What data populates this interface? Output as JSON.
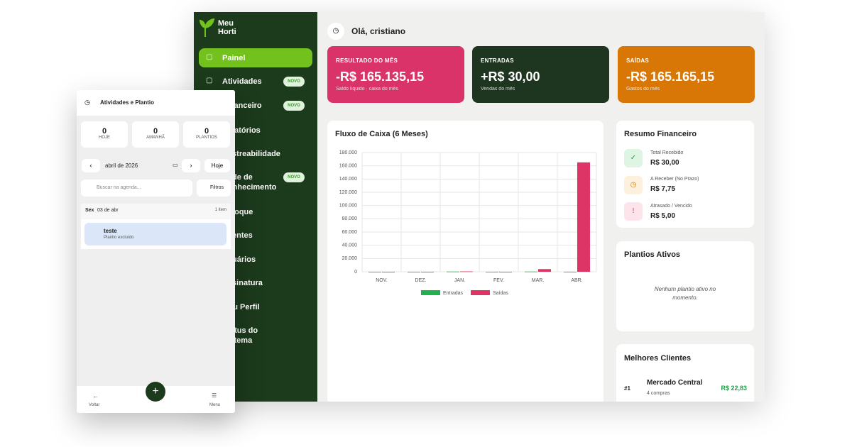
{
  "sidebar": {
    "brand": [
      "Meu",
      "Horti"
    ],
    "nav": [
      {
        "label": "Painel"
      },
      {
        "label": "Atividades",
        "badge": "NOVO"
      },
      {
        "label": "Financeiro",
        "badge": "NOVO"
      },
      {
        "label": "Relatórios"
      },
      {
        "label": "Rastreabilidade"
      },
      {
        "label": "Rede de Conhecimento",
        "badge": "NOVO"
      },
      {
        "label": "Estoque"
      },
      {
        "label": "Clientes"
      },
      {
        "label": "Usuários"
      },
      {
        "label": "Assinatura"
      },
      {
        "label": "Meu Perfil"
      },
      {
        "label": "Status do Sistema"
      }
    ]
  },
  "header": {
    "greeting": "Olá, cristiano"
  },
  "cards": [
    {
      "title": "RESULTADO DO MÊS",
      "value": "-R$ 165.135,15",
      "subtitle": "Saldo líquido · caixa do mês"
    },
    {
      "title": "ENTRADAS",
      "value": "+R$ 30,00",
      "subtitle": "Vendas do mês"
    },
    {
      "title": "SAÍDAS",
      "value": "-R$ 165.165,15",
      "subtitle": "Gastos do mês"
    }
  ],
  "chart_data": {
    "type": "bar",
    "title": "Fluxo de Caixa (6 Meses)",
    "categories": [
      "NOV.",
      "DEZ.",
      "JAN.",
      "FEV.",
      "MAR.",
      "ABR."
    ],
    "series": [
      {
        "name": "Entradas",
        "color": "#22b14c",
        "values": [
          0,
          0,
          300,
          0,
          300,
          30
        ]
      },
      {
        "name": "Saídas",
        "color": "#dc3566",
        "values": [
          0,
          0,
          500,
          0,
          4000,
          165165
        ]
      }
    ],
    "ylim": [
      0,
      180000
    ],
    "yticks": [
      0,
      {
        "value": 20000,
        "label": "20.000"
      },
      {
        "value": 40000,
        "label": "40.000"
      },
      {
        "value": 60000,
        "label": "60.000"
      },
      {
        "value": 80000,
        "label": "80.000"
      },
      {
        "value": 100000,
        "label": "100.000"
      },
      {
        "value": 120000,
        "label": "120.000"
      },
      {
        "value": 140000,
        "label": "140.000"
      },
      {
        "value": 160000,
        "label": "160.000"
      },
      {
        "value": 180000,
        "label": "180.000"
      }
    ],
    "grid": true,
    "legend": "bottom"
  },
  "summary": {
    "title": "Resumo Financeiro",
    "items": [
      {
        "label": "Total Recebido",
        "value": "R$ 30,00"
      },
      {
        "label": "A Receber (No Prazo)",
        "value": "R$ 7,75"
      },
      {
        "label": "Atrasado / Vencido",
        "value": "R$ 5,00"
      }
    ]
  },
  "plantings": {
    "title": "Plantios Ativos",
    "empty": "Nenhum plantio ativo no momento."
  },
  "clients": {
    "title": "Melhores Clientes",
    "rows": [
      {
        "rank": "#1",
        "name": "Mercado Central",
        "orders": "4 compras",
        "amount": "R$ 22,83"
      }
    ]
  },
  "phone": {
    "title": "Atividades e Plantio",
    "stats": [
      {
        "value": "0",
        "label": "HOJE"
      },
      {
        "value": "0",
        "label": "AMANHÃ"
      },
      {
        "value": "0",
        "label": "PLANTIOS"
      }
    ],
    "month": "abril de 2026",
    "today": "Hoje",
    "search": "Buscar na agenda...",
    "filters": "Filtros",
    "day": {
      "weekday": "Sex",
      "date": "03 de abr",
      "count": "1 item"
    },
    "item": {
      "title": "teste",
      "subtitle": "Plantio excluído"
    },
    "back": "Voltar",
    "menu": "Menu"
  }
}
